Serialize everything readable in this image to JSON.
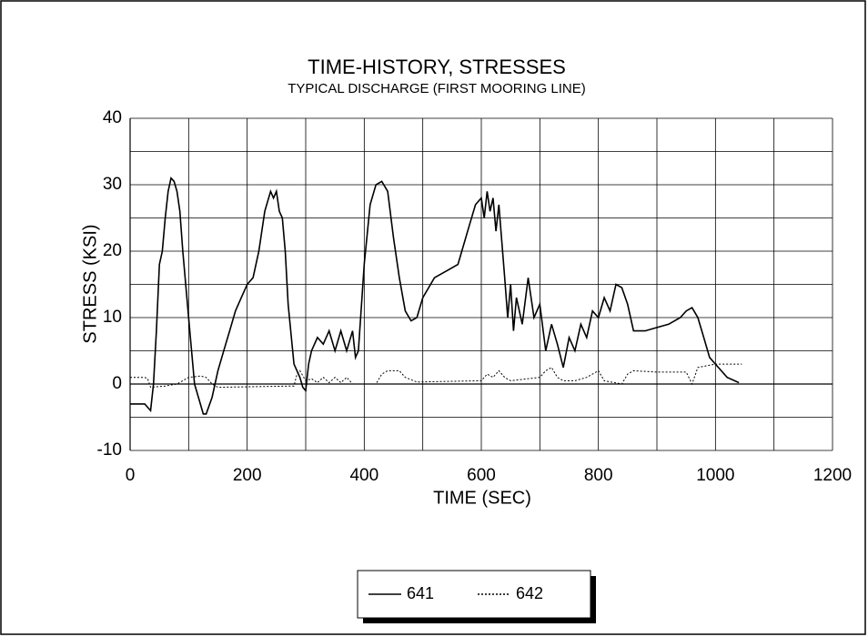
{
  "chart_data": {
    "type": "line",
    "title": "TIME-HISTORY, STRESSES",
    "subtitle": "TYPICAL DISCHARGE (FIRST MOORING LINE)",
    "x_label": "TIME (SEC)",
    "y_label": "STRESS (KSI)",
    "xlim": [
      0,
      1200
    ],
    "xticks": [
      0,
      200,
      400,
      600,
      800,
      1000,
      1200
    ],
    "xminor": [
      100,
      300,
      500,
      700,
      900,
      1100
    ],
    "ylim": [
      -10,
      40
    ],
    "yticks": [
      -10,
      0,
      10,
      20,
      30,
      40
    ],
    "yminor": [
      -5,
      5,
      15,
      25,
      35
    ],
    "grid": true,
    "legend": "bottom",
    "series": [
      {
        "name": "641",
        "color": "#000000",
        "dash": "solid",
        "x": [
          0,
          25,
          30,
          35,
          40,
          45,
          50,
          55,
          60,
          65,
          70,
          75,
          80,
          85,
          90,
          100,
          110,
          120,
          125,
          130,
          140,
          150,
          160,
          170,
          180,
          190,
          200,
          210,
          220,
          230,
          240,
          245,
          250,
          255,
          260,
          265,
          270,
          280,
          290,
          295,
          300,
          305,
          310,
          320,
          330,
          340,
          350,
          360,
          370,
          380,
          385,
          390,
          400,
          410,
          420,
          430,
          440,
          450,
          460,
          470,
          480,
          490,
          500,
          520,
          540,
          560,
          580,
          590,
          600,
          605,
          610,
          615,
          620,
          625,
          630,
          640,
          645,
          650,
          655,
          660,
          670,
          680,
          690,
          700,
          710,
          720,
          730,
          740,
          750,
          760,
          770,
          780,
          790,
          800,
          810,
          820,
          830,
          840,
          850,
          860,
          880,
          900,
          920,
          940,
          950,
          960,
          970,
          980,
          990,
          1000,
          1020,
          1040
        ],
        "values": [
          -3,
          -3,
          -3.5,
          -4,
          0,
          8,
          18,
          20,
          25,
          29,
          31,
          30.5,
          29,
          26,
          20,
          10,
          0,
          -3,
          -4.5,
          -4.5,
          -2,
          2,
          5,
          8,
          11,
          13,
          15,
          16,
          20,
          26,
          29,
          28,
          29,
          26,
          25,
          20,
          12,
          3,
          1,
          -0.5,
          -1,
          3,
          5,
          7,
          6,
          8,
          5,
          8,
          5,
          8,
          4,
          5,
          18,
          27,
          30,
          30.5,
          29,
          22,
          16,
          11,
          9.5,
          10,
          13,
          16,
          17,
          18,
          24,
          27,
          28,
          25,
          29,
          26,
          28,
          23,
          27,
          16,
          10,
          15,
          8,
          13,
          9,
          16,
          10,
          12,
          5,
          9,
          6,
          2.5,
          7,
          5,
          9,
          7,
          11,
          10,
          13,
          11,
          15,
          14.5,
          12,
          8,
          8,
          8.5,
          9,
          10,
          11,
          11.5,
          10,
          7,
          4,
          3,
          1,
          0.2
        ]
      },
      {
        "name": "642",
        "color": "#000000",
        "dash": "dotted",
        "x": [
          0,
          25,
          30,
          35,
          60,
          80,
          90,
          100,
          120,
          130,
          140,
          150,
          280,
          285,
          290,
          300,
          310,
          320,
          330,
          340,
          350,
          360,
          370,
          380,
          400,
          420,
          430,
          440,
          460,
          470,
          490,
          600,
          610,
          620,
          630,
          640,
          650,
          700,
          710,
          720,
          730,
          740,
          760,
          780,
          800,
          810,
          840,
          850,
          860,
          900,
          950,
          960,
          970,
          1000,
          1045
        ],
        "values": [
          1,
          1,
          0.8,
          -0.5,
          -0.3,
          0,
          0.5,
          1,
          1.2,
          1,
          0,
          -0.5,
          -0.3,
          1.5,
          2,
          0.5,
          0.8,
          0.2,
          1,
          0.2,
          1,
          0.2,
          1,
          0,
          0,
          0,
          1.5,
          2,
          2,
          1,
          0.3,
          0.5,
          1.5,
          1,
          2,
          1,
          0.5,
          1,
          2,
          2.5,
          1,
          0.5,
          0.5,
          1,
          2,
          0.5,
          0,
          1.5,
          2,
          1.8,
          1.8,
          0,
          2.5,
          3,
          3
        ]
      }
    ]
  }
}
